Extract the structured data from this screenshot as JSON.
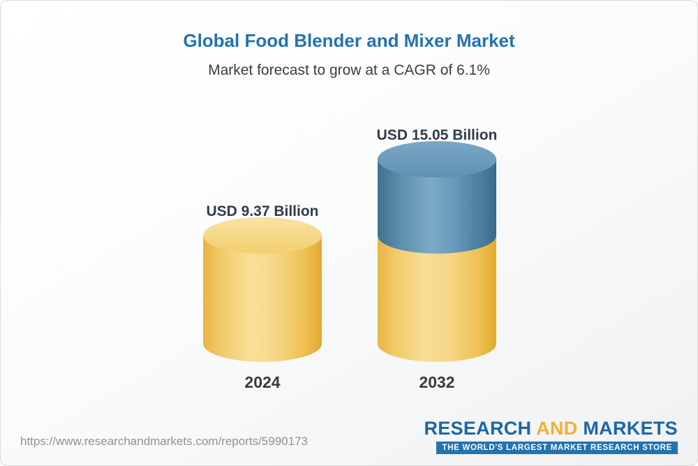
{
  "header": {
    "title": "Global Food Blender and Mixer Market",
    "subtitle": "Market forecast to grow at a CAGR of 6.1%"
  },
  "chart_data": {
    "type": "bar",
    "title": "Global Food Blender and Mixer Market",
    "subtitle": "Market forecast to grow at a CAGR of 6.1%",
    "cagr_percent": 6.1,
    "unit": "USD Billion",
    "categories": [
      "2024",
      "2032"
    ],
    "values": [
      9.37,
      15.05
    ],
    "value_labels": [
      "USD 9.37 Billion",
      "USD 15.05 Billion"
    ],
    "ylim": [
      0,
      15.05
    ],
    "grid": false,
    "legend": "none",
    "bar_style": "3d-cylinder",
    "colors": {
      "gold": "#f2cb66",
      "blue": "#5d8fb3",
      "title_blue": "#2273b0",
      "label_dark": "#2f3c4c"
    }
  },
  "footer": {
    "url": "https://www.researchandmarkets.com/reports/5990173",
    "logo": {
      "part1": "RESEARCH",
      "part2": "AND",
      "part3": "MARKETS",
      "tagline": "THE WORLD'S LARGEST MARKET RESEARCH STORE"
    }
  }
}
